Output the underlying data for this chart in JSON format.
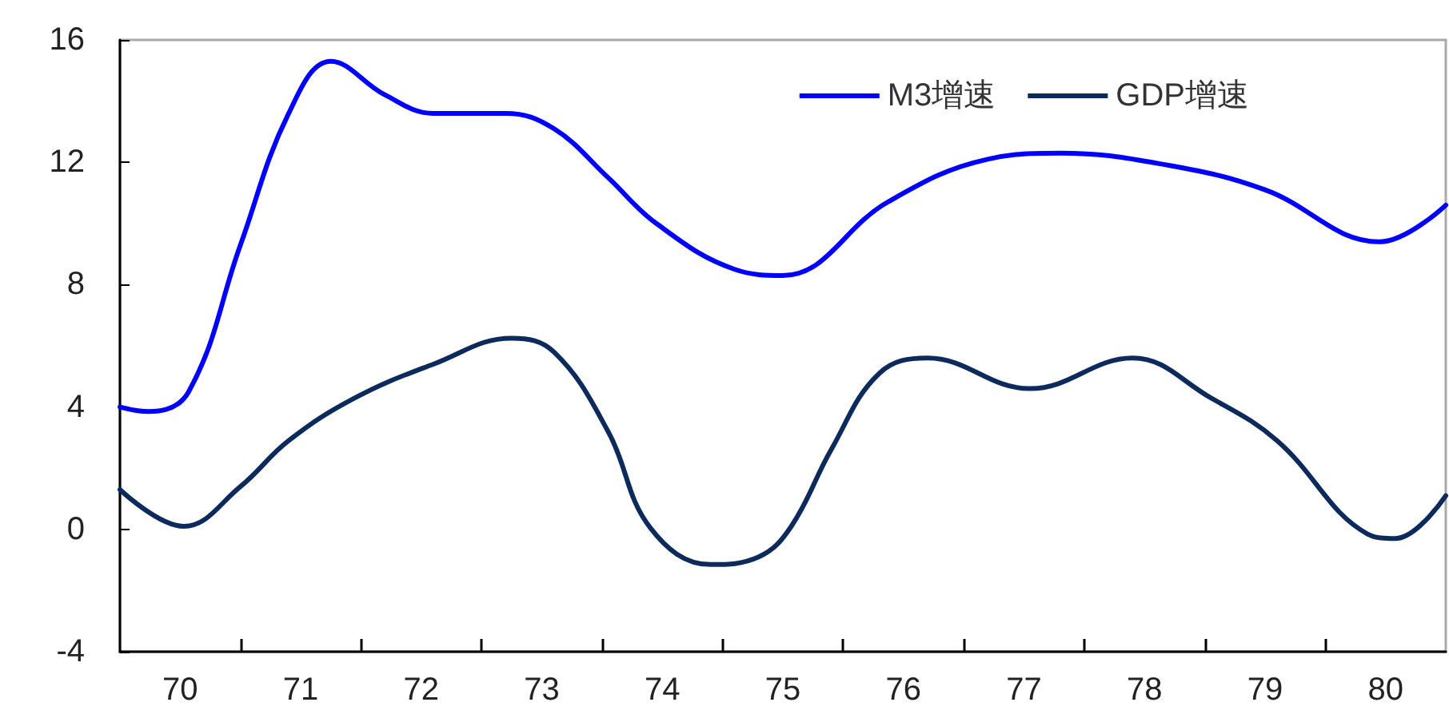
{
  "chart_data": {
    "type": "line",
    "legend": "top right",
    "grid": false,
    "marker": "none",
    "line_style": "solid",
    "xlim": [
      69.5,
      80.5
    ],
    "xticks": [
      {
        "value": 70,
        "label": "70"
      },
      {
        "value": 70.5,
        "label": null
      },
      {
        "value": 71,
        "label": "71"
      },
      {
        "value": 71.5,
        "label": null
      },
      {
        "value": 72,
        "label": "72"
      },
      {
        "value": 72.5,
        "label": null
      },
      {
        "value": 73,
        "label": "73"
      },
      {
        "value": 73.5,
        "label": null
      },
      {
        "value": 74,
        "label": "74"
      },
      {
        "value": 74.5,
        "label": null
      },
      {
        "value": 75,
        "label": "75"
      },
      {
        "value": 75.5,
        "label": null
      },
      {
        "value": 76,
        "label": "76"
      },
      {
        "value": 76.5,
        "label": null
      },
      {
        "value": 77,
        "label": "77"
      },
      {
        "value": 77.5,
        "label": null
      },
      {
        "value": 78,
        "label": "78"
      },
      {
        "value": 78.5,
        "label": null
      },
      {
        "value": 79,
        "label": "79"
      },
      {
        "value": 79.5,
        "label": null
      },
      {
        "value": 80,
        "label": "80"
      }
    ],
    "ylim": [
      -4,
      16
    ],
    "yticks": [
      -4,
      0,
      4,
      8,
      12,
      16
    ],
    "series": [
      {
        "name": "M3增速",
        "color": "#0000ff",
        "x": [
          69.5,
          69.74,
          70.07,
          70.5,
          70.9,
          71.25,
          71.7,
          72.1,
          72.37,
          72.7,
          73.1,
          73.55,
          73.95,
          74.6,
          75.0,
          75.87,
          76.7,
          77.3,
          78.2,
          79.0,
          79.95,
          80.5
        ],
        "values": [
          4.0,
          3.85,
          4.5,
          9.3,
          13.6,
          15.3,
          14.2,
          13.6,
          13.6,
          13.6,
          13.1,
          11.5,
          10.0,
          8.5,
          8.3,
          10.7,
          12.1,
          12.3,
          11.9,
          11.1,
          9.4,
          10.6
        ]
      },
      {
        "name": "GDP增速",
        "color": "#0d2a5c",
        "x": [
          69.5,
          70.03,
          70.5,
          70.9,
          71.45,
          72.1,
          72.75,
          73.1,
          73.55,
          73.9,
          74.4,
          74.8,
          75.07,
          75.4,
          75.8,
          76.2,
          77.05,
          77.9,
          78.55,
          79.1,
          79.85,
          80.08,
          80.5
        ],
        "values": [
          1.3,
          0.1,
          1.4,
          2.9,
          4.3,
          5.4,
          6.25,
          5.8,
          3.2,
          0.05,
          -1.15,
          -0.9,
          0.1,
          2.6,
          5.1,
          5.6,
          4.6,
          5.6,
          4.3,
          2.9,
          -0.15,
          -0.3,
          1.1
        ]
      }
    ]
  }
}
